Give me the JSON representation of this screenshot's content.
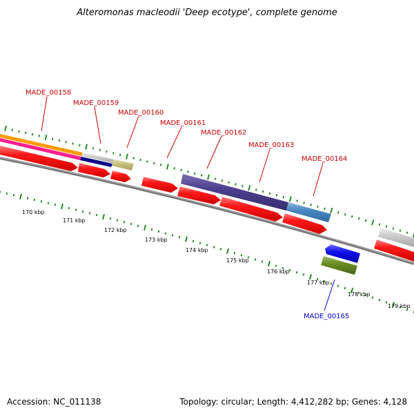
{
  "title": "Alteromonas macleodii 'Deep ecotype', complete genome",
  "footer": {
    "accession": "Accession: NC_011138",
    "summary": "Topology: circular; Length: 4,412,282 bp; Genes: 4,128"
  },
  "colors": {
    "forward_cds": "#ff0000",
    "label_forward": "#cc0000",
    "label_reverse": "#0000cc",
    "backbone": "#777777",
    "tick": "#228b22"
  },
  "scale_labels": [
    "170 kbp",
    "171 kbp",
    "172 kbp",
    "173 kbp",
    "174 kbp",
    "175 kbp",
    "176 kbp",
    "177 kbp",
    "178 kbp",
    "179 kbp"
  ],
  "gene_labels": [
    {
      "text": "MADE_00158",
      "strand": "forward"
    },
    {
      "text": "MADE_00159",
      "strand": "forward"
    },
    {
      "text": "MADE_00160",
      "strand": "forward"
    },
    {
      "text": "MADE_00161",
      "strand": "forward"
    },
    {
      "text": "MADE_00162",
      "strand": "forward"
    },
    {
      "text": "MADE_00163",
      "strand": "forward"
    },
    {
      "text": "MADE_00164",
      "strand": "forward"
    },
    {
      "text": "MADE_00165",
      "strand": "reverse"
    }
  ]
}
